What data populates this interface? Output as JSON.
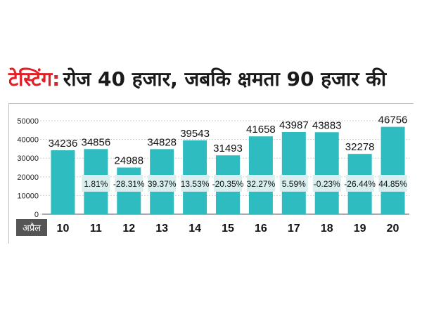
{
  "header": {
    "title_prefix": "टेस्टिंग:",
    "title_rest": "रोज 40 हजार, जबकि क्षमता 90 हजार की"
  },
  "colors": {
    "bar": "#2ebcc0",
    "title_accent": "#e01f26",
    "label_box": "#d9eeee",
    "month_tab": "#555555"
  },
  "chart_data": {
    "type": "bar",
    "month_label": "अप्रैल",
    "categories": [
      "10",
      "11",
      "12",
      "13",
      "14",
      "15",
      "16",
      "17",
      "18",
      "19",
      "20"
    ],
    "values": [
      34236,
      34856,
      24988,
      34828,
      39543,
      31493,
      41658,
      43987,
      43883,
      32278,
      46756
    ],
    "change_labels": [
      "",
      "1.81%",
      "-28.31%",
      "39.37%",
      "13.53%",
      "-20.35%",
      "32.27%",
      "5.59%",
      "-0.23%",
      "-26.44%",
      "44.85%"
    ],
    "ylim": [
      0,
      50000
    ],
    "yticks": [
      0,
      10000,
      20000,
      30000,
      40000,
      50000
    ],
    "grid": true
  }
}
